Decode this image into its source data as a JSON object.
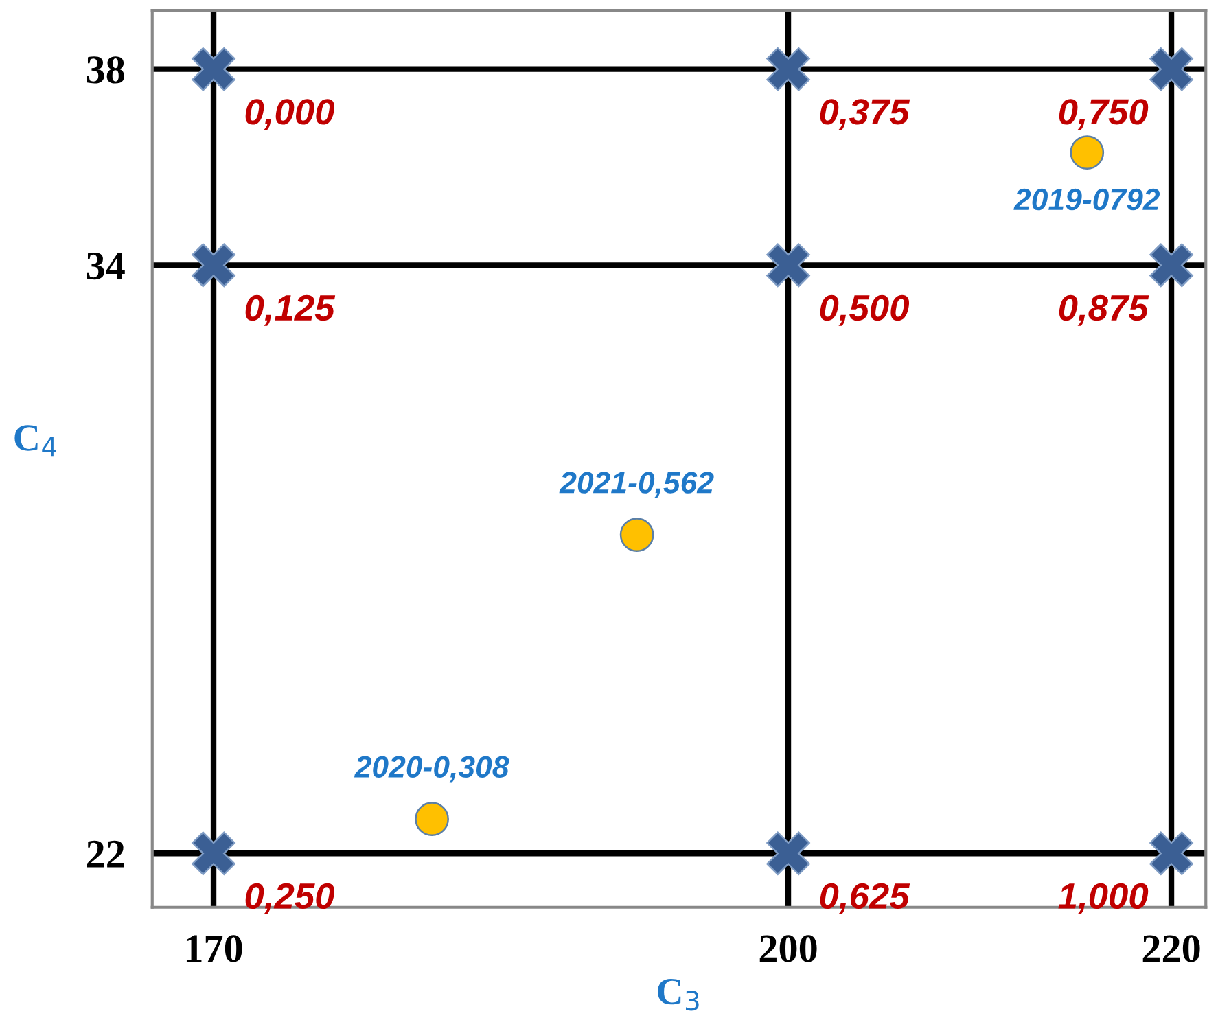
{
  "chart_data": {
    "type": "scatter",
    "xlabel": "C$_{3}$",
    "ylabel": "C$_{4}$",
    "xlim": [
      166.8,
      221.8
    ],
    "ylim": [
      20.9,
      39.2
    ],
    "xticks": [
      170,
      200,
      220
    ],
    "yticks": [
      22,
      34,
      38
    ],
    "grid": true,
    "series": [
      {
        "marker": "cross",
        "color": "#3b5f94",
        "x": [
          170,
          200,
          220,
          170,
          200,
          220,
          170,
          200,
          220
        ],
        "values": [
          38,
          38,
          38,
          34,
          34,
          34,
          22,
          22,
          22
        ]
      },
      {
        "marker": "circle",
        "color": "#ffc000",
        "x": [
          215.6,
          192.1,
          181.4
        ],
        "values": [
          36.3,
          28.5,
          22.7
        ]
      }
    ],
    "annotations": [
      {
        "text": "0,000",
        "x": 170,
        "y": 38
      },
      {
        "text": "0,375",
        "x": 200,
        "y": 38
      },
      {
        "text": "0,750",
        "x": 220,
        "y": 38
      },
      {
        "text": "0,125",
        "x": 170,
        "y": 34
      },
      {
        "text": "0,500",
        "x": 200,
        "y": 34
      },
      {
        "text": "0,875",
        "x": 220,
        "y": 34
      },
      {
        "text": "0,250",
        "x": 170,
        "y": 22
      },
      {
        "text": "0,625",
        "x": 200,
        "y": 22
      },
      {
        "text": "1,000",
        "x": 220,
        "y": 22
      },
      {
        "text": "2019-0792",
        "x": 215.6,
        "y": 36.3
      },
      {
        "text": "2021-0,562",
        "x": 192.1,
        "y": 28.5
      },
      {
        "text": "2020-0,308",
        "x": 181.4,
        "y": 22.7
      }
    ]
  }
}
